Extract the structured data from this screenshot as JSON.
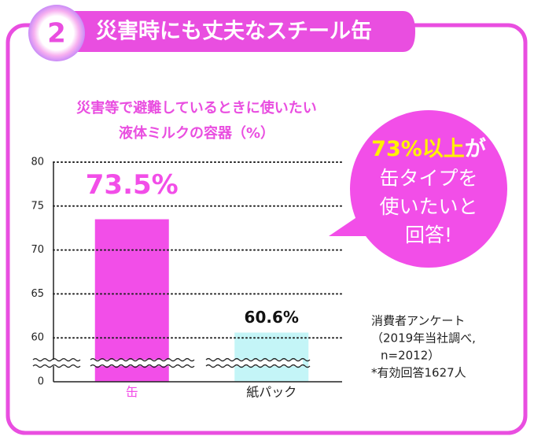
{
  "header": {
    "number": "2",
    "title": "災害時にも丈夫なスチール缶"
  },
  "chart_data": {
    "type": "bar",
    "title": [
      "災害等で避難しているときに使いたい",
      "液体ミルクの容器（%）"
    ],
    "categories": [
      "缶",
      "紙パック"
    ],
    "values": [
      73.5,
      60.6
    ],
    "value_labels": [
      "73.5%",
      "60.6%"
    ],
    "colors": [
      "#f24ee8",
      "#c4f5f7"
    ],
    "ylim": [
      0,
      80
    ],
    "yticks": [
      0,
      60,
      65,
      70,
      75,
      80
    ],
    "grid": true,
    "axis_break": true
  },
  "callout": {
    "highlight": "73%以上",
    "rest": "が",
    "lines": [
      "缶タイプを",
      "使いたいと",
      "回答!"
    ]
  },
  "note": {
    "lines": [
      "消費者アンケート",
      "（2019年当社調べ,",
      "n=2012）",
      "*有効回答1627人"
    ]
  }
}
